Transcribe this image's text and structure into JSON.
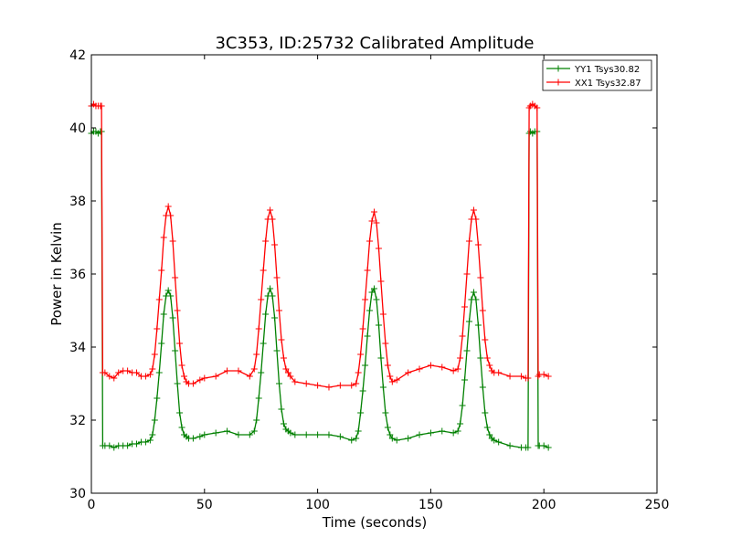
{
  "chart_data": {
    "type": "line",
    "title": "3C353, ID:25732 Calibrated Amplitude",
    "xlabel": "Time (seconds)",
    "ylabel": "Power in Kelvin",
    "xlim": [
      0,
      250
    ],
    "ylim": [
      30,
      42
    ],
    "xticks": [
      0,
      50,
      100,
      150,
      200,
      250
    ],
    "yticks": [
      30,
      32,
      34,
      36,
      38,
      40,
      42
    ],
    "grid": false,
    "legend_position": "top-right",
    "marker": "plus",
    "series": [
      {
        "name": "YY1 Tsys30.82",
        "color": "#008000",
        "x": [
          0,
          1,
          2,
          3,
          4,
          4.5,
          5,
          6,
          8,
          10,
          12,
          14,
          16,
          18,
          20,
          22,
          24,
          26,
          27,
          28,
          29,
          30,
          31,
          32,
          33,
          34,
          35,
          36,
          37,
          38,
          39,
          40,
          41,
          42,
          43,
          45,
          48,
          50,
          55,
          60,
          65,
          70,
          72,
          73,
          74,
          75,
          76,
          77,
          78,
          79,
          80,
          81,
          82,
          83,
          84,
          85,
          86,
          87,
          88,
          90,
          95,
          100,
          105,
          110,
          115,
          117,
          118,
          119,
          120,
          121,
          122,
          123,
          124,
          125,
          126,
          127,
          128,
          129,
          130,
          131,
          132,
          133,
          135,
          140,
          145,
          150,
          155,
          160,
          162,
          163,
          164,
          165,
          166,
          167,
          168,
          169,
          170,
          171,
          172,
          173,
          174,
          175,
          176,
          177,
          178,
          180,
          185,
          190,
          192,
          193,
          193.5,
          194,
          195,
          196,
          197,
          197.5,
          198,
          200,
          202
        ],
        "values": [
          39.85,
          39.9,
          39.9,
          39.85,
          39.9,
          39.9,
          31.3,
          31.3,
          31.3,
          31.25,
          31.3,
          31.3,
          31.3,
          31.35,
          31.35,
          31.4,
          31.4,
          31.45,
          31.6,
          32.0,
          32.6,
          33.3,
          34.1,
          34.9,
          35.4,
          35.55,
          35.4,
          34.8,
          33.9,
          33.0,
          32.2,
          31.8,
          31.6,
          31.55,
          31.5,
          31.5,
          31.55,
          31.6,
          31.65,
          31.7,
          31.6,
          31.6,
          31.7,
          32.0,
          32.6,
          33.3,
          34.1,
          34.9,
          35.4,
          35.6,
          35.4,
          34.8,
          33.9,
          33.0,
          32.3,
          31.9,
          31.75,
          31.7,
          31.65,
          31.6,
          31.6,
          31.6,
          31.6,
          31.55,
          31.45,
          31.5,
          31.7,
          32.2,
          32.8,
          33.5,
          34.3,
          35.0,
          35.5,
          35.6,
          35.3,
          34.6,
          33.7,
          32.9,
          32.2,
          31.8,
          31.6,
          31.5,
          31.45,
          31.5,
          31.6,
          31.65,
          31.7,
          31.65,
          31.7,
          31.9,
          32.4,
          33.1,
          33.9,
          34.7,
          35.3,
          35.5,
          35.3,
          34.6,
          33.7,
          32.9,
          32.2,
          31.8,
          31.6,
          31.5,
          31.45,
          31.4,
          31.3,
          31.25,
          31.25,
          31.25,
          39.85,
          39.9,
          39.85,
          39.9,
          39.9,
          31.3,
          31.3,
          31.3,
          31.25
        ]
      },
      {
        "name": "XX1 Tsys32.87",
        "color": "#ff0000",
        "x": [
          0,
          1,
          2,
          3,
          4,
          4.5,
          5,
          6,
          8,
          10,
          12,
          14,
          16,
          18,
          20,
          22,
          24,
          26,
          27,
          28,
          29,
          30,
          31,
          32,
          33,
          34,
          35,
          36,
          37,
          38,
          39,
          40,
          41,
          42,
          43,
          45,
          48,
          50,
          55,
          60,
          65,
          70,
          72,
          73,
          74,
          75,
          76,
          77,
          78,
          79,
          80,
          81,
          82,
          83,
          84,
          85,
          86,
          87,
          88,
          90,
          95,
          100,
          105,
          110,
          115,
          117,
          118,
          119,
          120,
          121,
          122,
          123,
          124,
          125,
          126,
          127,
          128,
          129,
          130,
          131,
          132,
          133,
          135,
          140,
          145,
          150,
          155,
          160,
          162,
          163,
          164,
          165,
          166,
          167,
          168,
          169,
          170,
          171,
          172,
          173,
          174,
          175,
          176,
          177,
          178,
          180,
          185,
          190,
          192,
          193,
          193.5,
          194,
          195,
          196,
          197,
          197.5,
          198,
          200,
          202
        ],
        "values": [
          40.6,
          40.65,
          40.6,
          40.6,
          40.6,
          40.6,
          33.3,
          33.3,
          33.2,
          33.15,
          33.3,
          33.35,
          33.35,
          33.3,
          33.3,
          33.2,
          33.2,
          33.25,
          33.4,
          33.8,
          34.5,
          35.3,
          36.1,
          37.0,
          37.6,
          37.85,
          37.6,
          36.9,
          35.9,
          35.0,
          34.1,
          33.5,
          33.2,
          33.05,
          33.0,
          33.0,
          33.1,
          33.15,
          33.2,
          33.35,
          33.35,
          33.2,
          33.4,
          33.8,
          34.5,
          35.3,
          36.1,
          36.9,
          37.5,
          37.75,
          37.5,
          36.8,
          35.9,
          35.0,
          34.2,
          33.7,
          33.4,
          33.3,
          33.2,
          33.05,
          33.0,
          32.95,
          32.9,
          32.95,
          32.95,
          33.0,
          33.3,
          33.8,
          34.5,
          35.3,
          36.1,
          36.9,
          37.45,
          37.7,
          37.4,
          36.7,
          35.8,
          34.9,
          34.1,
          33.5,
          33.2,
          33.05,
          33.1,
          33.3,
          33.4,
          33.5,
          33.45,
          33.35,
          33.4,
          33.7,
          34.3,
          35.1,
          36.0,
          36.9,
          37.5,
          37.75,
          37.5,
          36.8,
          35.9,
          35.0,
          34.2,
          33.7,
          33.5,
          33.35,
          33.3,
          33.3,
          33.2,
          33.2,
          33.15,
          33.15,
          40.55,
          40.6,
          40.65,
          40.6,
          40.55,
          33.2,
          33.25,
          33.25,
          33.2
        ]
      }
    ]
  }
}
